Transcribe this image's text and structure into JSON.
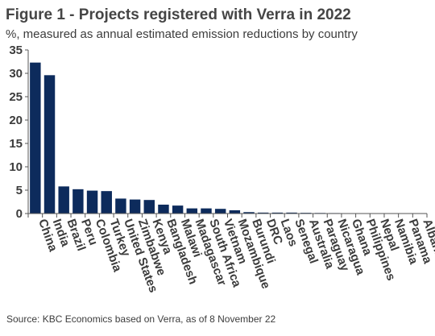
{
  "title": "Figure 1 - Projects registered with Verra in 2022",
  "subtitle": "%, measured as annual estimated emission reductions by country",
  "source": "Source: KBC Economics based on Verra, as of 8 November 22",
  "colors": {
    "bar": "#0d2b5c",
    "axis": "#555555",
    "text": "#3c3c3c"
  },
  "chart_data": {
    "type": "bar",
    "title": "Figure 1 - Projects registered with Verra in 2022",
    "subtitle": "%, measured as annual estimated emission reductions by country",
    "xlabel": "",
    "ylabel": "",
    "ylim": [
      0,
      35
    ],
    "yticks": [
      0,
      5,
      10,
      15,
      20,
      25,
      30,
      35
    ],
    "grid": false,
    "categories": [
      "China",
      "India",
      "Brazil",
      "Peru",
      "Colombia",
      "Turkey",
      "United States",
      "Zimbabwe",
      "Kenya",
      "Bangladesh",
      "Malawi",
      "Madagascar",
      "South Africa",
      "Vietnam",
      "Mozambique",
      "Burundi",
      "DRC",
      "Laos",
      "Senegal",
      "Australia",
      "Paraguay",
      "Nicaragua",
      "Ghana",
      "Philippines",
      "Nepal",
      "Namibia",
      "Panama",
      "Albania"
    ],
    "values": [
      32.3,
      29.6,
      5.8,
      5.2,
      4.9,
      4.8,
      3.2,
      3.0,
      2.9,
      1.9,
      1.7,
      1.1,
      1.1,
      1.0,
      0.7,
      0.3,
      0.2,
      0.2,
      0.2,
      0.15,
      0.12,
      0.1,
      0.08,
      0.05,
      0.04,
      0.03,
      0.02,
      0.01
    ]
  }
}
